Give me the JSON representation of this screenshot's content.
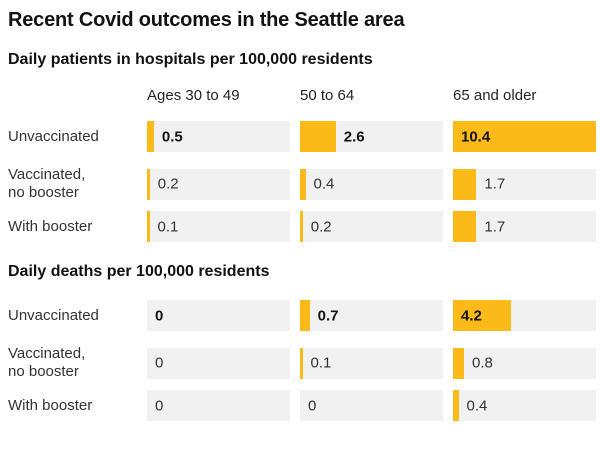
{
  "title": "Recent Covid outcomes in the Seattle area",
  "colors": {
    "bar": "#fbba18",
    "track": "#f1f1f1",
    "ink": "#121212",
    "muted_text": "#333333"
  },
  "chart_data": [
    {
      "type": "bar",
      "title": "Daily patients in hospitals per 100,000 residents",
      "categories": [
        "Ages 30 to 49",
        "50 to 64",
        "65 and older"
      ],
      "categories_visible": true,
      "xlim": [
        0,
        10.4
      ],
      "legend": "none",
      "grid": false,
      "rows": [
        {
          "label": "Unvaccinated",
          "values": [
            0.5,
            2.6,
            10.4
          ],
          "value_labels": [
            "0.5",
            "2.6",
            "10.4"
          ],
          "emphasis": true
        },
        {
          "label": "Vaccinated,\nno booster",
          "values": [
            0.2,
            0.4,
            1.7
          ],
          "value_labels": [
            "0.2",
            "0.4",
            "1.7"
          ],
          "emphasis": false
        },
        {
          "label": "With booster",
          "values": [
            0.1,
            0.2,
            1.7
          ],
          "value_labels": [
            "0.1",
            "0.2",
            "1.7"
          ],
          "emphasis": false
        }
      ]
    },
    {
      "type": "bar",
      "title": "Daily deaths per 100,000 residents",
      "categories": [
        "Ages 30 to 49",
        "50 to 64",
        "65 and older"
      ],
      "categories_visible": false,
      "xlim": [
        0,
        10.4
      ],
      "legend": "none",
      "grid": false,
      "rows": [
        {
          "label": "Unvaccinated",
          "values": [
            0,
            0.7,
            4.2
          ],
          "value_labels": [
            "0",
            "0.7",
            "4.2"
          ],
          "emphasis": true
        },
        {
          "label": "Vaccinated,\nno booster",
          "values": [
            0,
            0.1,
            0.8
          ],
          "value_labels": [
            "0",
            "0.1",
            "0.8"
          ],
          "emphasis": false
        },
        {
          "label": "With booster",
          "values": [
            0,
            0,
            0.4
          ],
          "value_labels": [
            "0",
            "0",
            "0.4"
          ],
          "emphasis": false
        }
      ]
    }
  ]
}
